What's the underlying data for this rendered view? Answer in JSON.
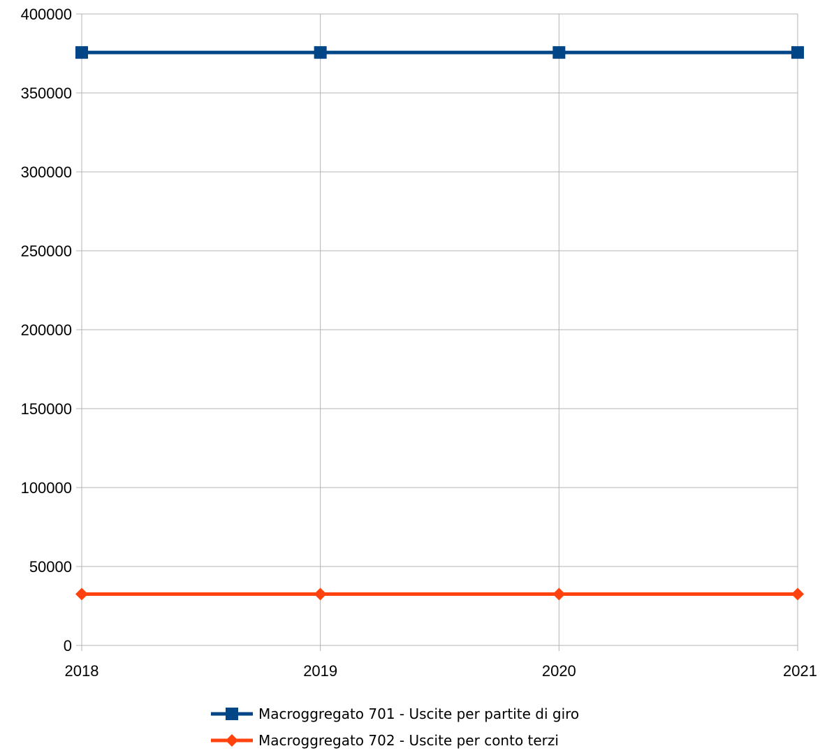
{
  "chart_data": {
    "type": "line",
    "title": "",
    "xlabel": "",
    "ylabel": "",
    "categories": [
      "2018",
      "2019",
      "2020",
      "2021"
    ],
    "ylim": [
      0,
      400000
    ],
    "yticks": [
      0,
      50000,
      100000,
      150000,
      200000,
      250000,
      300000,
      350000,
      400000
    ],
    "grid": "horizontal",
    "legend_position": "bottom-center",
    "series": [
      {
        "name": "Macroggregato 701 - Uscite per partite di giro",
        "values": [
          375600,
          375600,
          375600,
          375600
        ],
        "color": "#004586",
        "marker": "square"
      },
      {
        "name": "Macroggregato 702 - Uscite per conto terzi",
        "values": [
          32500,
          32500,
          32500,
          32500
        ],
        "color": "#ff420e",
        "marker": "diamond"
      }
    ]
  }
}
